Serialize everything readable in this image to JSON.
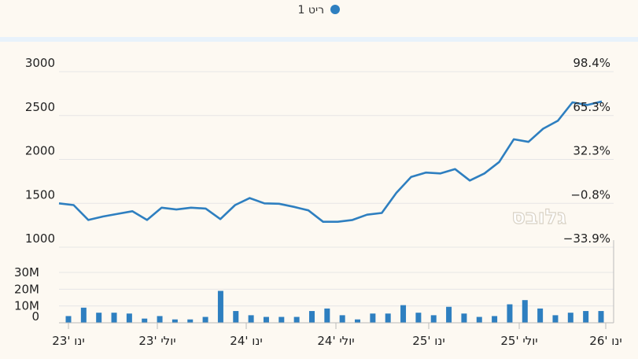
{
  "legend": {
    "label": "ריט 1",
    "color": "#2e7fc0"
  },
  "watermark": "גלובס",
  "colors": {
    "line": "#2e7fc0",
    "bars": "#2e7fc0",
    "grid": "#e6e6e6",
    "axis": "#bbbbbb"
  },
  "chart_data": {
    "type": "line",
    "price": {
      "name": "ריט 1",
      "ylim": [
        1000,
        3000
      ],
      "left_ticks": [
        "3000",
        "2500",
        "2000",
        "1500",
        "1000"
      ],
      "left_tick_values": [
        3000,
        2500,
        2000,
        1500,
        1000
      ],
      "right_ticks": [
        "98.4%",
        "65.3%",
        "32.3%",
        "−0.8%",
        "−33.9%"
      ],
      "values": [
        1500,
        1480,
        1310,
        1350,
        1380,
        1410,
        1310,
        1450,
        1430,
        1450,
        1440,
        1320,
        1480,
        1560,
        1500,
        1495,
        1460,
        1420,
        1290,
        1290,
        1310,
        1370,
        1390,
        1620,
        1800,
        1850,
        1840,
        1890,
        1760,
        1840,
        1970,
        2230,
        2200,
        2350,
        2440,
        2650,
        2620,
        2660
      ]
    },
    "volume": {
      "name": "volume",
      "ylim": [
        0,
        30
      ],
      "tick_labels": [
        "30M",
        "20M",
        "10M",
        "0"
      ],
      "tick_values": [
        30,
        20,
        10,
        0
      ],
      "values": [
        4.0,
        9.0,
        6.0,
        6.0,
        5.5,
        2.5,
        4.0,
        2.0,
        2.0,
        3.5,
        19.0,
        7.0,
        4.5,
        3.5,
        3.5,
        3.5,
        7.0,
        8.5,
        4.5,
        2.0,
        5.5,
        5.5,
        10.5,
        6.0,
        4.5,
        9.5,
        5.5,
        3.5,
        4.0,
        11.0,
        13.5,
        8.5,
        4.5,
        6.0,
        7.0,
        7.0
      ]
    },
    "x_tick_labels": [
      "ינו '23",
      "יולי '23",
      "ינו '24",
      "יולי '24",
      "ינו '25",
      "יולי '25",
      "ינו '26"
    ]
  }
}
